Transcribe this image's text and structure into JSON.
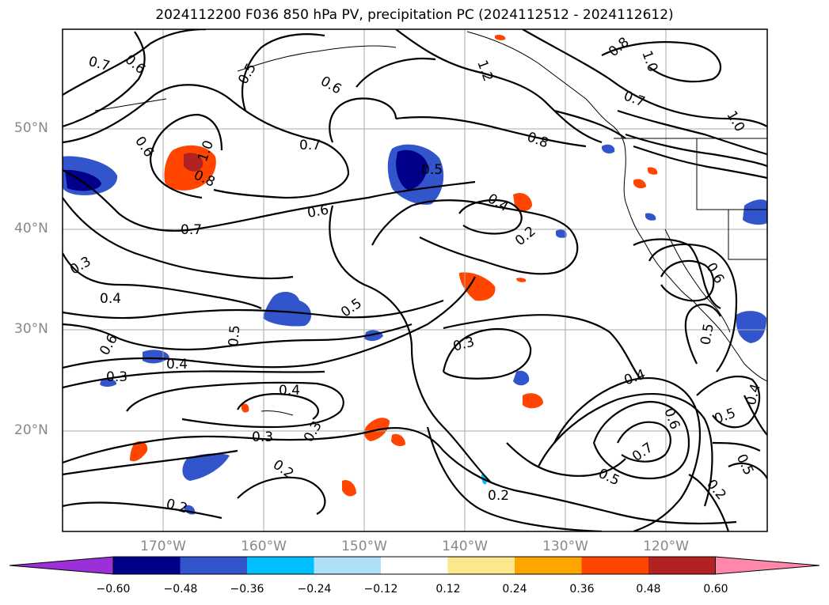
{
  "title": "2024112200 F036 850 hPa PV, precipitation PC (2024112512 - 2024112612)",
  "map": {
    "lon_range": [
      -180,
      -110
    ],
    "lat_range": [
      10,
      60
    ],
    "lat_ticks": [
      "50°N",
      "40°N",
      "30°N",
      "20°N"
    ],
    "lon_ticks": [
      "170°W",
      "160°W",
      "150°W",
      "140°W",
      "130°W",
      "120°W"
    ],
    "grid": true,
    "contour_labels": [
      "0.7",
      "0.6",
      "0.8",
      "1.0",
      "0.7",
      "0.6",
      "0.5",
      "0.6",
      "0.7",
      "0.3",
      "0.4",
      "0.5",
      "0.6",
      "0.4",
      "0.3",
      "0.5",
      "0.4",
      "0.3",
      "0.2",
      "0.3",
      "0.2",
      "0.2",
      "0.4",
      "0.3",
      "0.5",
      "0.7",
      "0.6",
      "0.2",
      "0.5",
      "0.4",
      "0.5",
      "0.6",
      "0.5",
      "1.2",
      "0.8",
      "0.7",
      "1.0",
      "0.8",
      "1.0",
      "0.6",
      "0.4",
      "0.2",
      "0.5"
    ]
  },
  "colorbar": {
    "colors": [
      "#9b30d9",
      "#00008b",
      "#3355cc",
      "#00bfff",
      "#b0e0f8",
      "#ffffff",
      "#fbe88c",
      "#ffa500",
      "#ff4500",
      "#b22222",
      "#ff88aa"
    ],
    "tick_labels": [
      "−0.60",
      "−0.48",
      "−0.36",
      "−0.24",
      "−0.12",
      "0.12",
      "0.24",
      "0.36",
      "0.48",
      "0.60"
    ]
  }
}
